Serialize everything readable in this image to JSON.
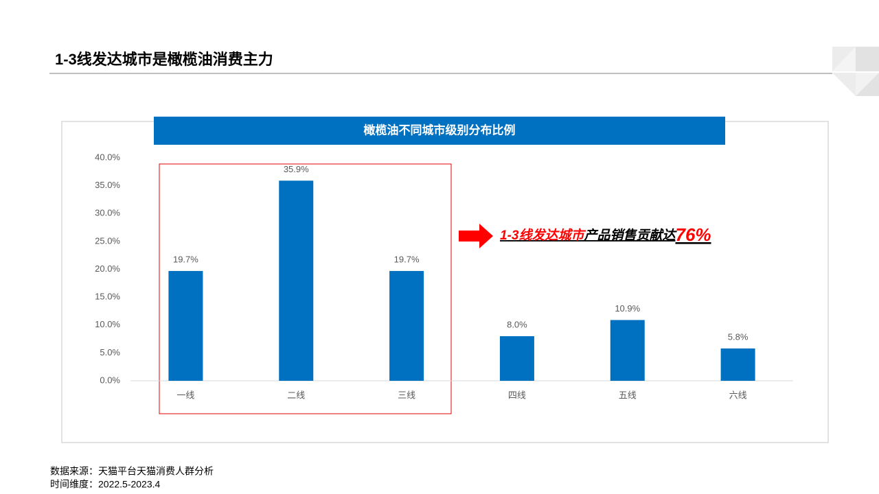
{
  "slide_title": "1-3线发达城市是橄榄油消费主力",
  "chart_data": {
    "type": "bar",
    "title": "橄榄油不同城市级别分布比例",
    "categories": [
      "一线",
      "二线",
      "三线",
      "四线",
      "五线",
      "六线"
    ],
    "values": [
      19.7,
      35.9,
      19.7,
      8.0,
      10.9,
      5.8
    ],
    "value_labels": [
      "19.7%",
      "35.9%",
      "19.7%",
      "8.0%",
      "10.9%",
      "5.8%"
    ],
    "color": "#0070c0",
    "ylim": [
      0,
      40
    ],
    "yticks": [
      {
        "value": 0,
        "label": "0.0%"
      },
      {
        "value": 5,
        "label": "5.0%"
      },
      {
        "value": 10,
        "label": "10.0%"
      },
      {
        "value": 15,
        "label": "15.0%"
      },
      {
        "value": 20,
        "label": "20.0%"
      },
      {
        "value": 25,
        "label": "25.0%"
      },
      {
        "value": 30,
        "label": "30.0%"
      },
      {
        "value": 35,
        "label": "35.0%"
      },
      {
        "value": 40,
        "label": "40.0%"
      }
    ],
    "grid": false,
    "annotation": [
      "1-3线发达城市",
      "产品销售贡献达",
      "76%"
    ]
  },
  "footnotes": [
    "数据来源：天猫平台天猫消费人群分析",
    "时间维度：2022.5-2023.4"
  ]
}
